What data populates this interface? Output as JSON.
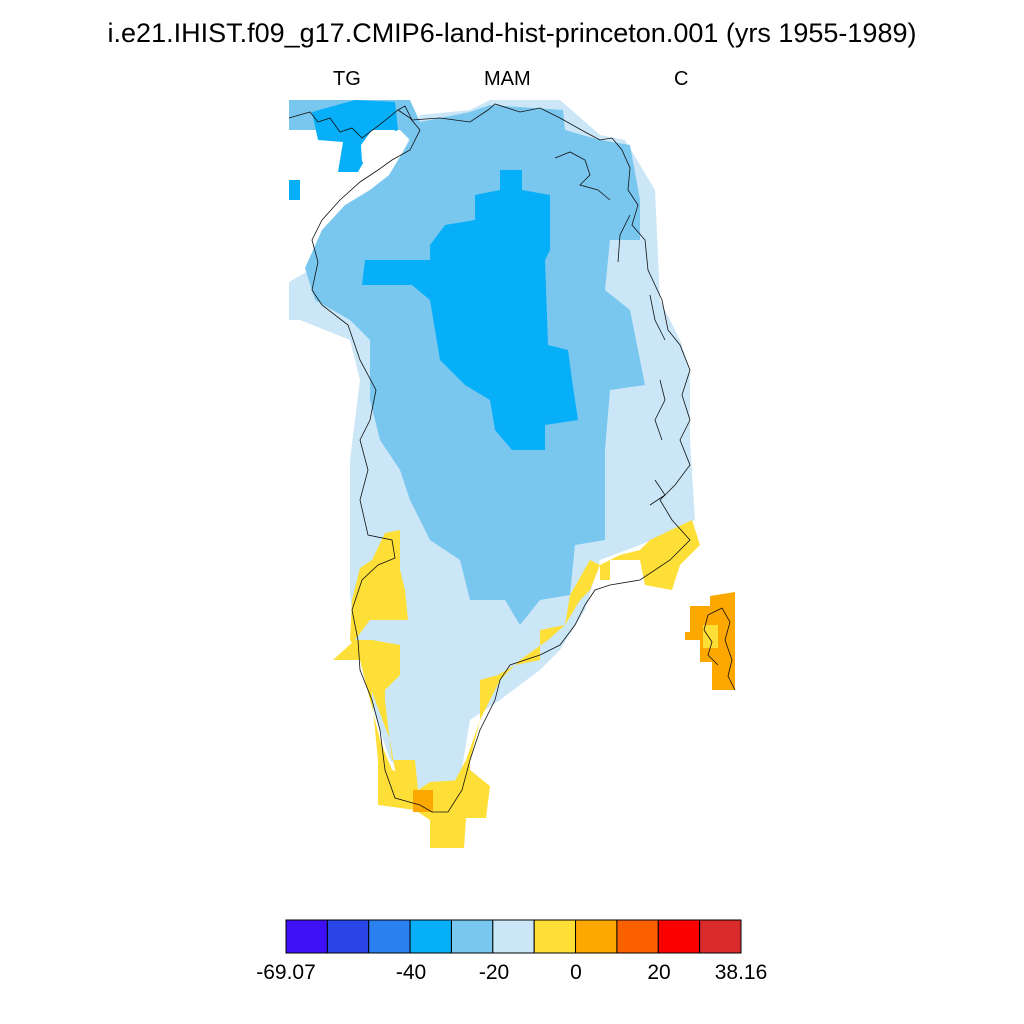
{
  "title": "i.e21.IHIST.f09_g17.CMIP6-land-hist-princeton.001 (yrs 1955-1989)",
  "subtitles": {
    "left": "TG",
    "center": "MAM",
    "right": "C"
  },
  "colorbar": {
    "colors": [
      "#3d10f5",
      "#2a46e6",
      "#2b80f0",
      "#07aef8",
      "#79c7ef",
      "#cbe7f7",
      "#fddf37",
      "#fca800",
      "#fc6100",
      "#fb0000",
      "#d92b2b"
    ],
    "tick_labels": [
      "-69.07",
      "-40",
      "-20",
      "0",
      "20",
      "38.16"
    ],
    "levels": [
      -60,
      -50,
      -40,
      -30,
      -20,
      -10,
      0,
      10,
      20,
      30
    ]
  },
  "map_legend": {
    "blue_mid": "#07aef8",
    "blue_light": "#79c7ef",
    "blue_pale": "#cbe7f7",
    "yellow": "#fddf37",
    "orange": "#fca800"
  }
}
